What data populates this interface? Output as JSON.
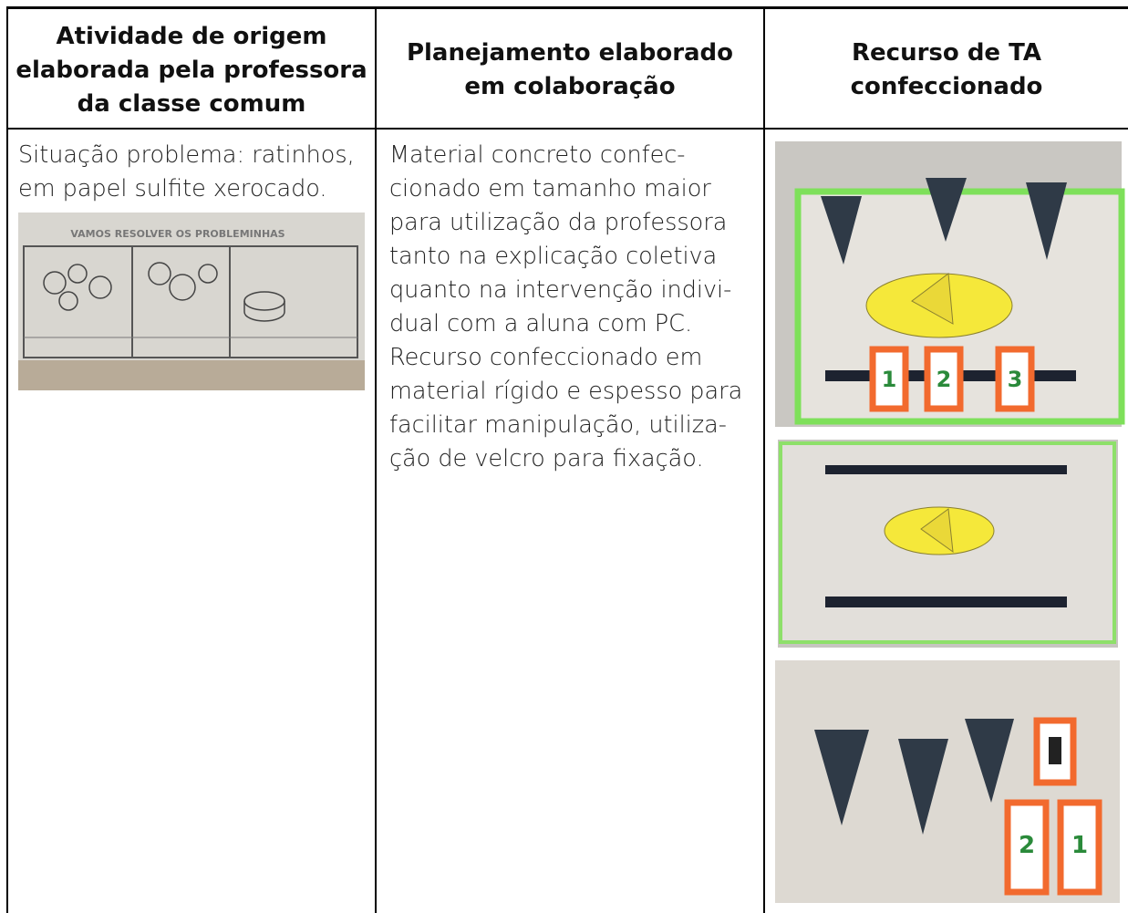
{
  "table": {
    "header": [
      {
        "lines": [
          "Atividade de origem",
          "elaborada pela professora",
          "da classe comum"
        ]
      },
      {
        "lines": [
          "Planejamento elaborado",
          "em colaboração"
        ]
      },
      {
        "lines": [
          "Recurso de TA",
          "confeccionado"
        ]
      }
    ],
    "rows": [
      [
        {
          "lines": [
            "Situação problema: ratinhos,",
            "em papel sulfite xerocado."
          ]
        },
        {
          "lines": [
            "Material concreto confec-",
            "cionado em tamanho maior",
            "para utilização da professora",
            "tanto na explicação coletiva",
            "quanto na intervenção indivi-",
            "dual com a aluna com PC.",
            "Recurso confeccionado em",
            "material rígido e espesso para",
            "facilitar manipulação, utiliza-",
            "ção de velcro para fixação."
          ]
        }
      ]
    ]
  },
  "photos": {
    "worksheet": {
      "title": "VAMOS RESOLVER OS PROBLEMINHAS"
    },
    "board": {
      "cards": [
        "1",
        "2",
        "3"
      ]
    },
    "mice": {
      "cards": [
        "2",
        "1"
      ]
    }
  }
}
